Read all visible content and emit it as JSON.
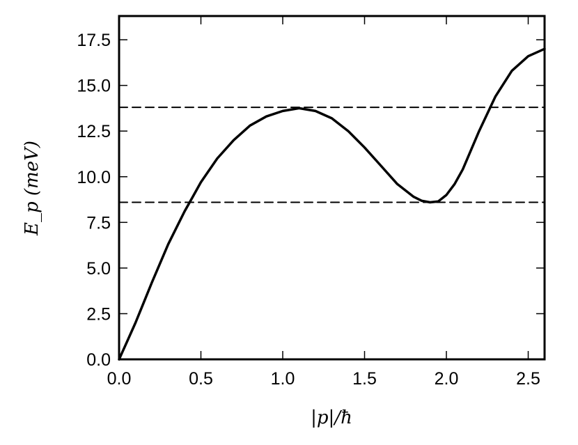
{
  "chart_data": {
    "type": "line",
    "title": "",
    "xlabel": "|p|/ħ",
    "ylabel": "E_p (meV)",
    "xlim": [
      0.0,
      2.6
    ],
    "ylim": [
      0.0,
      18.8
    ],
    "grid": false,
    "legend": "none",
    "x_ticks": [
      0.0,
      0.5,
      1.0,
      1.5,
      2.0,
      2.5
    ],
    "x_tick_labels": [
      "0.0",
      "0.5",
      "1.0",
      "1.5",
      "2.0",
      "2.5"
    ],
    "y_ticks": [
      0.0,
      2.5,
      5.0,
      7.5,
      10.0,
      12.5,
      15.0,
      17.5
    ],
    "y_tick_labels": [
      "0.0",
      "2.5",
      "5.0",
      "7.5",
      "10.0",
      "12.5",
      "15.0",
      "17.5"
    ],
    "series": [
      {
        "style": "solid",
        "color": "#000000",
        "x": [
          0.0,
          0.05,
          0.1,
          0.15,
          0.2,
          0.3,
          0.4,
          0.45,
          0.5,
          0.6,
          0.7,
          0.8,
          0.9,
          1.0,
          1.1,
          1.2,
          1.3,
          1.4,
          1.5,
          1.6,
          1.7,
          1.8,
          1.85,
          1.9,
          1.95,
          2.0,
          2.05,
          2.1,
          2.2,
          2.3,
          2.4,
          2.5,
          2.6
        ],
        "y": [
          0.0,
          1.0,
          2.0,
          3.1,
          4.2,
          6.3,
          8.1,
          8.9,
          9.7,
          11.0,
          12.0,
          12.8,
          13.3,
          13.6,
          13.75,
          13.6,
          13.2,
          12.5,
          11.6,
          10.6,
          9.6,
          8.9,
          8.68,
          8.6,
          8.65,
          9.0,
          9.6,
          10.4,
          12.5,
          14.4,
          15.8,
          16.6,
          17.0
        ]
      },
      {
        "style": "dashed",
        "color": "#000000",
        "x": [
          0.0,
          2.6
        ],
        "y": [
          13.8,
          13.8
        ]
      },
      {
        "style": "dashed",
        "color": "#000000",
        "x": [
          0.0,
          2.6
        ],
        "y": [
          8.6,
          8.6
        ]
      }
    ]
  }
}
